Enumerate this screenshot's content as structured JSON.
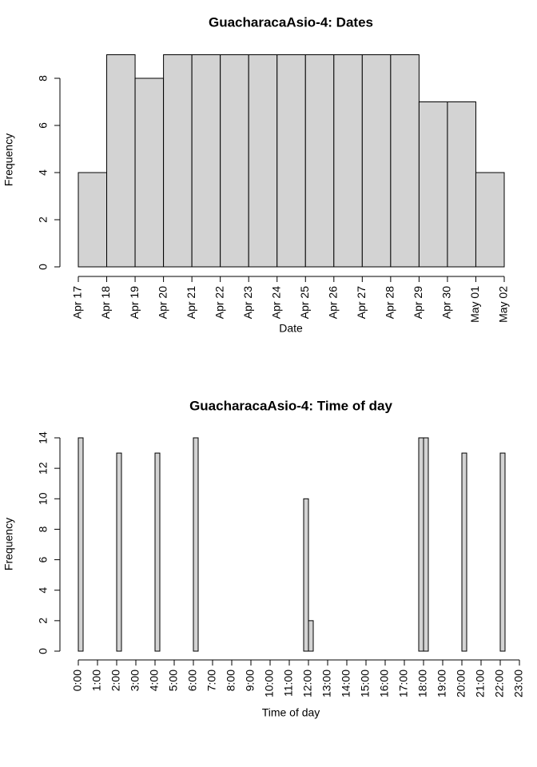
{
  "chart_data": [
    {
      "type": "histogram",
      "title": "GuacharacaAsio-4: Dates",
      "xlabel": "Date",
      "ylabel": "Frequency",
      "bins": [
        "Apr 17",
        "Apr 18",
        "Apr 19",
        "Apr 20",
        "Apr 21",
        "Apr 22",
        "Apr 23",
        "Apr 24",
        "Apr 25",
        "Apr 26",
        "Apr 27",
        "Apr 28",
        "Apr 29",
        "Apr 30",
        "May 01",
        "May 02"
      ],
      "values": [
        4,
        9,
        8,
        9,
        9,
        9,
        9,
        9,
        9,
        9,
        9,
        9,
        7,
        7,
        4
      ],
      "color": "#d3d3d3",
      "ylim": [
        0,
        9
      ],
      "yticks": [
        0,
        2,
        4,
        6,
        8
      ]
    },
    {
      "type": "histogram",
      "title": "GuacharacaAsio-4: Time of day",
      "xlabel": "Time of day",
      "ylabel": "Frequency",
      "bins": [
        0,
        0.25,
        0.5,
        0.75,
        1,
        1.25,
        1.5,
        1.75,
        2,
        2.25,
        2.5,
        2.75,
        3,
        3.25,
        3.5,
        3.75,
        4,
        4.25,
        4.5,
        4.75,
        5,
        5.25,
        5.5,
        5.75,
        6,
        6.25,
        6.5,
        6.75,
        7,
        7.25,
        7.5,
        7.75,
        8,
        8.25,
        8.5,
        8.75,
        9,
        9.25,
        9.5,
        9.75,
        10,
        10.25,
        10.5,
        10.75,
        11,
        11.25,
        11.5,
        11.75,
        12,
        12.25,
        12.5,
        12.75,
        13,
        13.25,
        13.5,
        13.75,
        14,
        14.25,
        14.5,
        14.75,
        15,
        15.25,
        15.5,
        15.75,
        16,
        16.25,
        16.5,
        16.75,
        17,
        17.25,
        17.5,
        17.75,
        18,
        18.25,
        18.5,
        18.75,
        19,
        19.25,
        19.5,
        19.75,
        20,
        20.25,
        20.5,
        20.75,
        21,
        21.25,
        21.5,
        21.75,
        22,
        22.25
      ],
      "values": [
        14,
        0,
        0,
        0,
        0,
        0,
        0,
        0,
        13,
        0,
        0,
        0,
        0,
        0,
        0,
        0,
        13,
        0,
        0,
        0,
        0,
        0,
        0,
        0,
        14,
        0,
        0,
        0,
        0,
        0,
        0,
        0,
        0,
        0,
        0,
        0,
        0,
        0,
        0,
        0,
        0,
        0,
        0,
        0,
        0,
        0,
        0,
        10,
        2,
        0,
        0,
        0,
        0,
        0,
        0,
        0,
        0,
        0,
        0,
        0,
        0,
        0,
        0,
        0,
        0,
        0,
        0,
        0,
        0,
        0,
        0,
        14,
        14,
        0,
        0,
        0,
        0,
        0,
        0,
        0,
        13,
        0,
        0,
        0,
        0,
        0,
        0,
        0,
        13
      ],
      "color": "#d3d3d3",
      "xlim": [
        0,
        23
      ],
      "ylim": [
        0,
        14
      ],
      "yticks": [
        0,
        2,
        4,
        6,
        8,
        10,
        12,
        14
      ],
      "xticks": [
        {
          "value": 0,
          "label": "0:00"
        },
        {
          "value": 1,
          "label": "1:00"
        },
        {
          "value": 2,
          "label": "2:00"
        },
        {
          "value": 3,
          "label": "3:00"
        },
        {
          "value": 4,
          "label": "4:00"
        },
        {
          "value": 5,
          "label": "5:00"
        },
        {
          "value": 6,
          "label": "6:00"
        },
        {
          "value": 7,
          "label": "7:00"
        },
        {
          "value": 8,
          "label": "8:00"
        },
        {
          "value": 9,
          "label": "9:00"
        },
        {
          "value": 10,
          "label": "10:00"
        },
        {
          "value": 11,
          "label": "11:00"
        },
        {
          "value": 12,
          "label": "12:00"
        },
        {
          "value": 13,
          "label": "13:00"
        },
        {
          "value": 14,
          "label": "14:00"
        },
        {
          "value": 15,
          "label": "15:00"
        },
        {
          "value": 16,
          "label": "16:00"
        },
        {
          "value": 17,
          "label": "17:00"
        },
        {
          "value": 18,
          "label": "18:00"
        },
        {
          "value": 19,
          "label": "19:00"
        },
        {
          "value": 20,
          "label": "20:00"
        },
        {
          "value": 21,
          "label": "21:00"
        },
        {
          "value": 22,
          "label": "22:00"
        },
        {
          "value": 23,
          "label": "23:00"
        }
      ]
    }
  ]
}
